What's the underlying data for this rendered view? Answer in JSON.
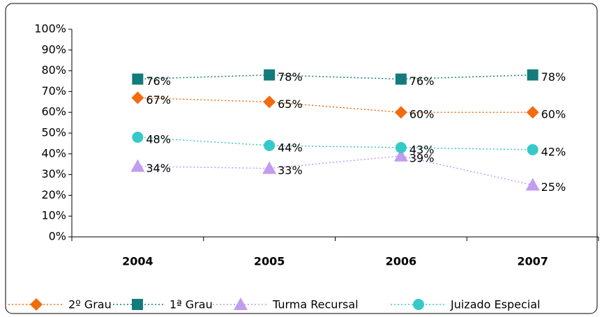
{
  "chart_data": {
    "type": "line",
    "categories": [
      "2004",
      "2005",
      "2006",
      "2007"
    ],
    "series": [
      {
        "name": "2º Grau",
        "color": "#f26b10",
        "marker": "diamond",
        "values": [
          67,
          65,
          60,
          60
        ],
        "value_labels": [
          "67%",
          "65%",
          "60%",
          "60%"
        ]
      },
      {
        "name": "1ª Grau",
        "color": "#137b7b",
        "marker": "square",
        "values": [
          76,
          78,
          76,
          78
        ],
        "value_labels": [
          "76%",
          "78%",
          "76%",
          "78%"
        ]
      },
      {
        "name": "Turma Recursal",
        "color": "#c29cf0",
        "marker": "triangle",
        "values": [
          34,
          33,
          39,
          25
        ],
        "value_labels": [
          "34%",
          "33%",
          "39%",
          "25%"
        ]
      },
      {
        "name": "Juizado Especial",
        "color": "#36c9c9",
        "marker": "circle",
        "values": [
          48,
          44,
          43,
          42
        ],
        "value_labels": [
          "48%",
          "44%",
          "43%",
          "42%"
        ]
      }
    ],
    "ylim": [
      0,
      100
    ],
    "yticks": [
      {
        "value": 0,
        "label": "0%"
      },
      {
        "value": 10,
        "label": "10%"
      },
      {
        "value": 20,
        "label": "20%"
      },
      {
        "value": 30,
        "label": "30%"
      },
      {
        "value": 40,
        "label": "40%"
      },
      {
        "value": 50,
        "label": "50%"
      },
      {
        "value": 60,
        "label": "60%"
      },
      {
        "value": 70,
        "label": "70%"
      },
      {
        "value": 80,
        "label": "80%"
      },
      {
        "value": 90,
        "label": "90%"
      },
      {
        "value": 100,
        "label": "100%"
      }
    ],
    "legend": "bottom"
  }
}
